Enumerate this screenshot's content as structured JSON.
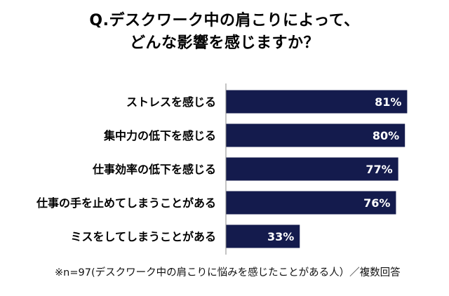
{
  "chart_data": {
    "type": "bar",
    "orientation": "horizontal",
    "title_lines": [
      "Q.デスクワーク中の肩こりによって、",
      "どんな影響を感じますか？"
    ],
    "categories": [
      "ストレスを感じる",
      "集中力の低下を感じる",
      "仕事効率の低下を感じる",
      "仕事の手を止めてしまうことがある",
      "ミスをしてしまうことがある"
    ],
    "values": [
      81,
      80,
      77,
      76,
      33
    ],
    "value_labels": [
      "81%",
      "80%",
      "77%",
      "76%",
      "33%"
    ],
    "xlim": [
      0,
      100
    ],
    "grid": false,
    "legend": "none",
    "bar_color": "#141b4d",
    "value_label_color": "#ffffff",
    "footnote": "※n=97(デスクワーク中の肩こりに悩みを感じたことがある人）／複数回答"
  }
}
